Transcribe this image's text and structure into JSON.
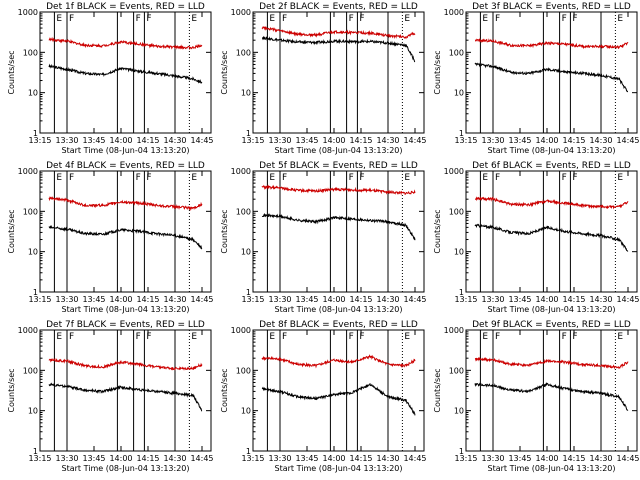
{
  "common": {
    "subtitle": "Start Time (08-Jun-04 13:13:20)",
    "ylabel": "Counts/sec",
    "xticks": [
      "13:15",
      "13:30",
      "13:45",
      "14:00",
      "14:15",
      "14:30",
      "14:45"
    ],
    "yticks": [
      "1",
      "10",
      "100",
      "1000"
    ],
    "markers": [
      "E",
      "F",
      "F",
      "F",
      "E"
    ],
    "colors": {
      "events": "#000000",
      "lld": "#cc0000",
      "axis": "#000000"
    }
  },
  "chart_data": [
    {
      "type": "line",
      "title": "Det 1f BLACK = Events, RED = LLD",
      "xlabel": "Start Time (08-Jun-04 13:13:20)",
      "ylabel": "Counts/sec",
      "y_scale": "log",
      "ylim": [
        1,
        1000
      ],
      "xlim": [
        "13:15",
        "14:50"
      ],
      "x": [
        "13:20",
        "13:30",
        "13:40",
        "13:50",
        "14:00",
        "14:10",
        "14:20",
        "14:30",
        "14:40",
        "14:45"
      ],
      "series": [
        {
          "name": "Events",
          "values": [
            45,
            38,
            30,
            28,
            40,
            34,
            30,
            26,
            22,
            18
          ]
        },
        {
          "name": "LLD",
          "values": [
            210,
            190,
            150,
            145,
            180,
            160,
            140,
            135,
            130,
            150
          ]
        }
      ],
      "vlines_solid": [
        "13:23",
        "13:30",
        "13:58",
        "14:07",
        "14:13",
        "14:30"
      ],
      "vlines_dotted": [
        "14:38"
      ]
    },
    {
      "type": "line",
      "title": "Det 2f BLACK = Events, RED = LLD",
      "xlabel": "Start Time (08-Jun-04 13:13:20)",
      "ylabel": "Counts/sec",
      "y_scale": "log",
      "ylim": [
        1,
        1000
      ],
      "xlim": [
        "13:15",
        "14:50"
      ],
      "x": [
        "13:20",
        "13:30",
        "13:40",
        "13:50",
        "14:00",
        "14:10",
        "14:20",
        "14:30",
        "14:40",
        "14:45"
      ],
      "series": [
        {
          "name": "Events",
          "values": [
            230,
            200,
            180,
            175,
            190,
            185,
            185,
            170,
            150,
            60
          ]
        },
        {
          "name": "LLD",
          "values": [
            420,
            340,
            280,
            270,
            320,
            310,
            300,
            260,
            240,
            300
          ]
        }
      ],
      "vlines_solid": [
        "13:23",
        "13:30",
        "13:58",
        "14:07",
        "14:13",
        "14:30"
      ],
      "vlines_dotted": [
        "14:38"
      ]
    },
    {
      "type": "line",
      "title": "Det 3f BLACK = Events, RED = LLD",
      "xlabel": "Start Time (08-Jun-04 13:13:20)",
      "ylabel": "Counts/sec",
      "y_scale": "log",
      "ylim": [
        1,
        1000
      ],
      "xlim": [
        "13:15",
        "14:50"
      ],
      "x": [
        "13:20",
        "13:30",
        "13:40",
        "13:50",
        "14:00",
        "14:10",
        "14:20",
        "14:30",
        "14:40",
        "14:45"
      ],
      "series": [
        {
          "name": "Events",
          "values": [
            50,
            45,
            32,
            30,
            38,
            33,
            30,
            27,
            22,
            10
          ]
        },
        {
          "name": "LLD",
          "values": [
            200,
            190,
            150,
            145,
            170,
            160,
            140,
            140,
            135,
            170
          ]
        }
      ],
      "vlines_solid": [
        "13:23",
        "13:30",
        "13:58",
        "14:07",
        "14:13",
        "14:30"
      ],
      "vlines_dotted": [
        "14:38"
      ]
    },
    {
      "type": "line",
      "title": "Det 4f BLACK = Events, RED = LLD",
      "xlabel": "Start Time (08-Jun-04 13:13:20)",
      "ylabel": "Counts/sec",
      "y_scale": "log",
      "ylim": [
        1,
        1000
      ],
      "xlim": [
        "13:15",
        "14:50"
      ],
      "x": [
        "13:20",
        "13:30",
        "13:40",
        "13:50",
        "14:00",
        "14:10",
        "14:20",
        "14:30",
        "14:40",
        "14:45"
      ],
      "series": [
        {
          "name": "Events",
          "values": [
            40,
            36,
            28,
            27,
            35,
            32,
            28,
            25,
            20,
            12
          ]
        },
        {
          "name": "LLD",
          "values": [
            210,
            190,
            140,
            140,
            170,
            160,
            140,
            130,
            120,
            150
          ]
        }
      ],
      "vlines_solid": [
        "13:23",
        "13:30",
        "13:58",
        "14:07",
        "14:13",
        "14:30"
      ],
      "vlines_dotted": [
        "14:38"
      ]
    },
    {
      "type": "line",
      "title": "Det 5f BLACK = Events, RED = LLD",
      "xlabel": "Start Time (08-Jun-04 13:13:20)",
      "ylabel": "Counts/sec",
      "y_scale": "log",
      "ylim": [
        1,
        1000
      ],
      "xlim": [
        "13:15",
        "14:50"
      ],
      "x": [
        "13:20",
        "13:30",
        "13:40",
        "13:50",
        "14:00",
        "14:10",
        "14:20",
        "14:30",
        "14:40",
        "14:45"
      ],
      "series": [
        {
          "name": "Events",
          "values": [
            80,
            75,
            60,
            55,
            70,
            65,
            60,
            55,
            45,
            20
          ]
        },
        {
          "name": "LLD",
          "values": [
            400,
            380,
            330,
            320,
            350,
            340,
            330,
            300,
            280,
            300
          ]
        }
      ],
      "vlines_solid": [
        "13:23",
        "13:30",
        "13:58",
        "14:07",
        "14:13",
        "14:30"
      ],
      "vlines_dotted": [
        "14:38"
      ]
    },
    {
      "type": "line",
      "title": "Det 6f BLACK = Events, RED = LLD",
      "xlabel": "Start Time (08-Jun-04 13:13:20)",
      "ylabel": "Counts/sec",
      "y_scale": "log",
      "ylim": [
        1,
        1000
      ],
      "xlim": [
        "13:15",
        "14:50"
      ],
      "x": [
        "13:20",
        "13:30",
        "13:40",
        "13:50",
        "14:00",
        "14:10",
        "14:20",
        "14:30",
        "14:40",
        "14:45"
      ],
      "series": [
        {
          "name": "Events",
          "values": [
            45,
            40,
            30,
            28,
            40,
            32,
            28,
            25,
            20,
            10
          ]
        },
        {
          "name": "LLD",
          "values": [
            210,
            200,
            150,
            145,
            180,
            160,
            140,
            130,
            130,
            170
          ]
        }
      ],
      "vlines_solid": [
        "13:23",
        "13:30",
        "13:58",
        "14:07",
        "14:13",
        "14:30"
      ],
      "vlines_dotted": [
        "14:38"
      ]
    },
    {
      "type": "line",
      "title": "Det 7f BLACK = Events, RED = LLD",
      "xlabel": "Start Time (08-Jun-04 13:13:20)",
      "ylabel": "Counts/sec",
      "y_scale": "log",
      "ylim": [
        1,
        1000
      ],
      "xlim": [
        "13:15",
        "14:50"
      ],
      "x": [
        "13:20",
        "13:30",
        "13:40",
        "13:50",
        "14:00",
        "14:10",
        "14:20",
        "14:30",
        "14:40",
        "14:45"
      ],
      "series": [
        {
          "name": "Events",
          "values": [
            45,
            40,
            32,
            30,
            38,
            33,
            30,
            27,
            24,
            10
          ]
        },
        {
          "name": "LLD",
          "values": [
            180,
            170,
            130,
            120,
            160,
            140,
            120,
            110,
            110,
            140
          ]
        }
      ],
      "vlines_solid": [
        "13:23",
        "13:30",
        "13:58",
        "14:07",
        "14:13",
        "14:30"
      ],
      "vlines_dotted": [
        "14:38"
      ]
    },
    {
      "type": "line",
      "title": "Det 8f BLACK = Events, RED = LLD",
      "xlabel": "Start Time (08-Jun-04 13:13:20)",
      "ylabel": "Counts/sec",
      "y_scale": "log",
      "ylim": [
        1,
        1000
      ],
      "xlim": [
        "13:15",
        "14:50"
      ],
      "x": [
        "13:20",
        "13:30",
        "13:40",
        "13:50",
        "14:00",
        "14:10",
        "14:20",
        "14:30",
        "14:40",
        "14:45"
      ],
      "series": [
        {
          "name": "Events",
          "values": [
            35,
            30,
            22,
            20,
            25,
            28,
            45,
            22,
            18,
            8
          ]
        },
        {
          "name": "LLD",
          "values": [
            200,
            190,
            140,
            130,
            180,
            160,
            220,
            140,
            130,
            180
          ]
        }
      ],
      "vlines_solid": [
        "13:23",
        "13:30",
        "13:58",
        "14:07",
        "14:13",
        "14:30"
      ],
      "vlines_dotted": [
        "14:38"
      ]
    },
    {
      "type": "line",
      "title": "Det 9f BLACK = Events, RED = LLD",
      "xlabel": "Start Time (08-Jun-04 13:13:20)",
      "ylabel": "Counts/sec",
      "y_scale": "log",
      "ylim": [
        1,
        1000
      ],
      "xlim": [
        "13:15",
        "14:50"
      ],
      "x": [
        "13:20",
        "13:30",
        "13:40",
        "13:50",
        "14:00",
        "14:10",
        "14:20",
        "14:30",
        "14:40",
        "14:45"
      ],
      "series": [
        {
          "name": "Events",
          "values": [
            45,
            42,
            32,
            30,
            45,
            35,
            30,
            27,
            22,
            10
          ]
        },
        {
          "name": "LLD",
          "values": [
            190,
            180,
            140,
            135,
            170,
            160,
            140,
            130,
            120,
            160
          ]
        }
      ],
      "vlines_solid": [
        "13:23",
        "13:30",
        "13:58",
        "14:07",
        "14:13",
        "14:30"
      ],
      "vlines_dotted": [
        "14:38"
      ]
    }
  ]
}
